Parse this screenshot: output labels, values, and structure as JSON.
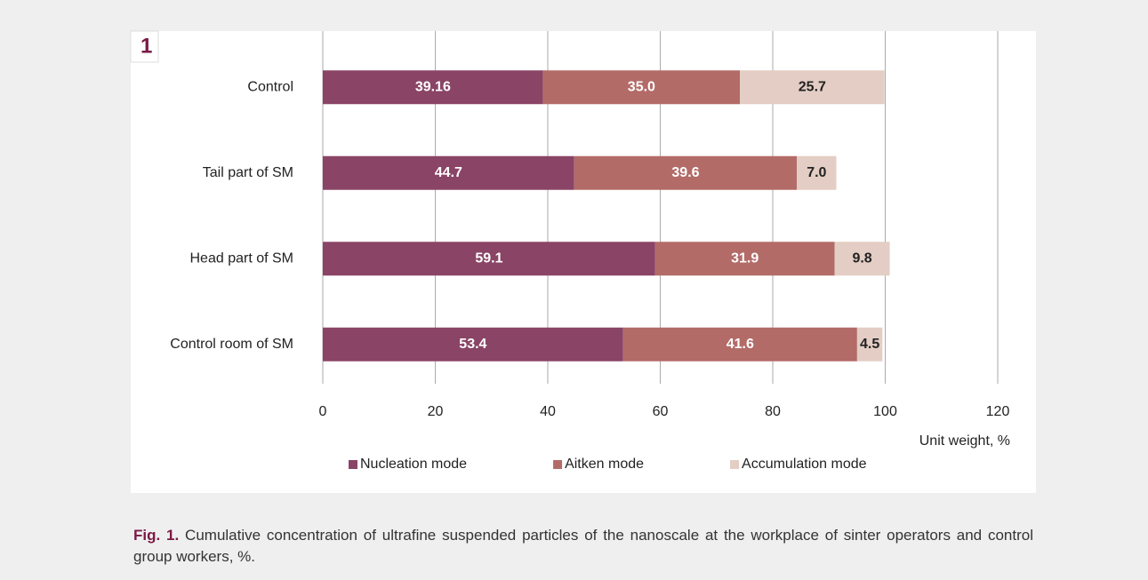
{
  "panel_label": "1",
  "caption": {
    "label": "Fig. 1.",
    "text": "Cumulative concentration of ultrafine suspended particles of the nanoscale at the workplace of sinter operators and control group workers, %."
  },
  "chart_data": {
    "type": "stacked_barh",
    "categories": [
      "Control",
      "Tail part of SM",
      "Head part of SM",
      "Control room of SM"
    ],
    "series": [
      {
        "name": "Nucleation mode",
        "color": "#8a4466",
        "values": [
          39.16,
          44.7,
          59.1,
          53.4
        ],
        "value_labels": [
          "39.16",
          "44.7",
          "59.1",
          "53.4"
        ]
      },
      {
        "name": "Aitken mode",
        "color": "#b36b68",
        "values": [
          35.0,
          39.6,
          31.9,
          41.6
        ],
        "value_labels": [
          "35.0",
          "39.6",
          "31.9",
          "41.6"
        ]
      },
      {
        "name": "Accumulation mode",
        "color": "#e3cdc4",
        "values": [
          25.7,
          7.0,
          9.8,
          4.5
        ],
        "value_labels": [
          "25.7",
          "7.0",
          "9.8",
          "4.5"
        ]
      }
    ],
    "xlabel": "Unit weight, %",
    "xlim": [
      0,
      120
    ],
    "xticks": [
      0,
      20,
      40,
      60,
      80,
      100,
      120
    ],
    "grid": true,
    "legend": "bottom"
  }
}
